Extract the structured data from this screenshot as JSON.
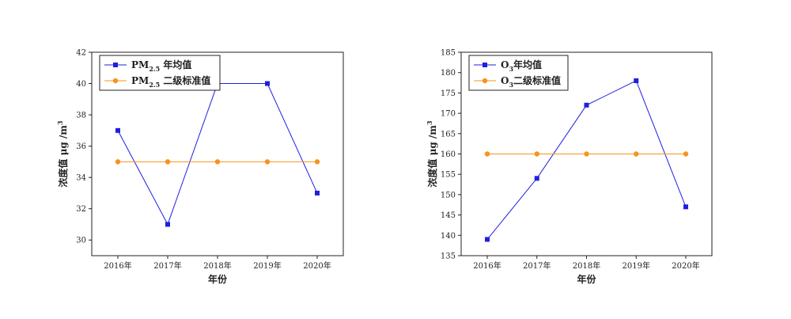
{
  "chart_data": [
    {
      "type": "line",
      "categories": [
        "2016年",
        "2017年",
        "2018年",
        "2019年",
        "2020年"
      ],
      "xlabel": "年份",
      "ylabel_parts": {
        "text": "浓度值 μg /m",
        "sup": "3"
      },
      "ylim": [
        29,
        42
      ],
      "yticks": [
        30,
        32,
        34,
        36,
        38,
        40,
        42
      ],
      "grid": false,
      "legend_position": "top-left",
      "series": [
        {
          "name": "PM2.5 年均值",
          "legend_parts": {
            "pre": "PM",
            "sub": "2.5",
            "post": " 年均值"
          },
          "values": [
            37,
            31,
            40,
            40,
            33
          ],
          "color": "#1f1fe0",
          "marker": "square"
        },
        {
          "name": "PM2.5 二级标准值",
          "legend_parts": {
            "pre": "PM",
            "sub": "2.5",
            "post": " 二级标准值"
          },
          "values": [
            35,
            35,
            35,
            35,
            35
          ],
          "color": "#f7931e",
          "marker": "circle"
        }
      ]
    },
    {
      "type": "line",
      "categories": [
        "2016年",
        "2017年",
        "2018年",
        "2019年",
        "2020年"
      ],
      "xlabel": "年份",
      "ylabel_parts": {
        "text": "浓度值 μg /m",
        "sup": "3"
      },
      "ylim": [
        135,
        185
      ],
      "yticks": [
        135,
        140,
        145,
        150,
        155,
        160,
        165,
        170,
        175,
        180,
        185
      ],
      "grid": false,
      "legend_position": "top-left",
      "series": [
        {
          "name": "O3年均值",
          "legend_parts": {
            "pre": "O",
            "sub": "3",
            "post": "年均值"
          },
          "values": [
            139,
            154,
            172,
            178,
            147
          ],
          "color": "#1f1fe0",
          "marker": "square"
        },
        {
          "name": "O3二级标准值",
          "legend_parts": {
            "pre": "O",
            "sub": "3",
            "post": "二级标准值"
          },
          "values": [
            160,
            160,
            160,
            160,
            160
          ],
          "color": "#f7931e",
          "marker": "circle"
        }
      ]
    }
  ]
}
